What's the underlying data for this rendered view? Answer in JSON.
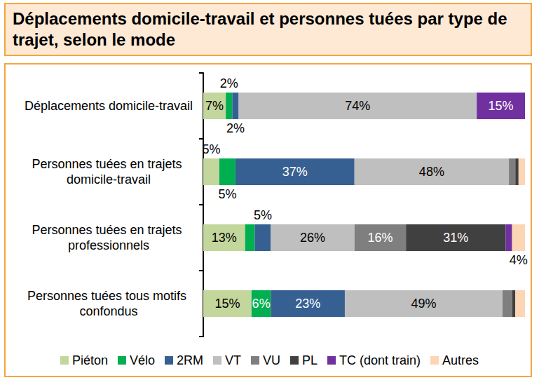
{
  "chart_data": {
    "type": "bar",
    "title": "Déplacements domicile-travail et personnes tuées par type de trajet, selon le mode",
    "orientation": "horizontal",
    "stacked": true,
    "data_labels": true,
    "legend": "bottom",
    "tick_labels": "y",
    "grid": false,
    "xlim": [
      0,
      100
    ],
    "categories": [
      "Déplacements domicile-travail",
      "Personnes tuées en trajets domicile-travail",
      "Personnes tuées en trajets professionnels",
      "Personnes tuées tous motifs confondus"
    ],
    "series": [
      {
        "name": "Piéton",
        "color": "#c3d69b",
        "values": [
          7,
          5,
          13,
          15
        ],
        "value_labels": [
          "7%",
          "5%",
          "13%",
          "15%"
        ]
      },
      {
        "name": "Vélo",
        "color": "#00b050",
        "values": [
          2,
          5,
          3,
          6
        ],
        "value_labels": [
          "2%",
          "5%",
          null,
          "6%"
        ]
      },
      {
        "name": "2RM",
        "color": "#376092",
        "values": [
          2,
          37,
          5,
          23
        ],
        "value_labels": [
          "2%",
          "37%",
          "5%",
          "23%"
        ]
      },
      {
        "name": "VT",
        "color": "#bfbfbf",
        "values": [
          74,
          48,
          26,
          49
        ],
        "value_labels": [
          "74%",
          "48%",
          "26%",
          "49%"
        ]
      },
      {
        "name": "VU",
        "color": "#7f7f7f",
        "values": [
          0,
          2,
          16,
          3
        ],
        "value_labels": [
          null,
          null,
          "16%",
          null
        ]
      },
      {
        "name": "PL",
        "color": "#404040",
        "values": [
          0,
          1,
          31,
          1
        ],
        "value_labels": [
          null,
          null,
          "31%",
          null
        ]
      },
      {
        "name": "TC (dont train)",
        "color": "#7030a0",
        "values": [
          15,
          0,
          2,
          0
        ],
        "value_labels": [
          "15%",
          null,
          null,
          null
        ]
      },
      {
        "name": "Autres",
        "color": "#fcd5b5",
        "values": [
          0,
          2,
          4,
          3
        ],
        "value_labels": [
          null,
          null,
          "4%",
          null
        ]
      }
    ]
  }
}
